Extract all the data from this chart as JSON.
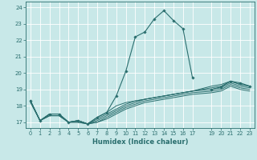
{
  "xlabel": "Humidex (Indice chaleur)",
  "ylabel": "",
  "bg_color": "#c8e8e8",
  "grid_color": "#ffffff",
  "line_color": "#2a6e6e",
  "xlim": [
    -0.5,
    23.5
  ],
  "ylim": [
    16.65,
    24.35
  ],
  "yticks": [
    17,
    18,
    19,
    20,
    21,
    22,
    23,
    24
  ],
  "xticks": [
    0,
    1,
    2,
    3,
    4,
    5,
    6,
    7,
    8,
    9,
    10,
    11,
    12,
    13,
    14,
    15,
    16,
    17,
    19,
    20,
    21,
    22,
    23
  ],
  "lines": [
    {
      "x": [
        0,
        1,
        2,
        3,
        4,
        5,
        6,
        7,
        8,
        9,
        10,
        11,
        12,
        13,
        14,
        15,
        16,
        17
      ],
      "y": [
        18.3,
        17.1,
        17.5,
        17.5,
        17.0,
        17.1,
        16.9,
        17.3,
        17.6,
        18.6,
        20.1,
        22.2,
        22.5,
        23.3,
        23.8,
        23.2,
        22.7,
        19.7
      ],
      "marker": true
    },
    {
      "x": [
        19,
        20,
        21,
        22,
        23
      ],
      "y": [
        19.0,
        19.15,
        19.5,
        19.4,
        19.2
      ],
      "marker": true
    },
    {
      "x": [
        0,
        1,
        2,
        3,
        4,
        5,
        6,
        7,
        8,
        9,
        10,
        11,
        12,
        13,
        14,
        15,
        16,
        17,
        19,
        20,
        21,
        22,
        23
      ],
      "y": [
        18.3,
        17.1,
        17.5,
        17.5,
        17.0,
        17.1,
        16.9,
        17.3,
        17.6,
        18.0,
        18.2,
        18.3,
        18.4,
        18.5,
        18.6,
        18.7,
        18.8,
        18.9,
        19.2,
        19.3,
        19.5,
        19.3,
        19.2
      ],
      "marker": false
    },
    {
      "x": [
        0,
        1,
        2,
        3,
        4,
        5,
        6,
        7,
        8,
        9,
        10,
        11,
        12,
        13,
        14,
        15,
        16,
        17,
        19,
        20,
        21,
        22,
        23
      ],
      "y": [
        18.3,
        17.1,
        17.5,
        17.5,
        17.0,
        17.1,
        16.9,
        17.2,
        17.5,
        17.8,
        18.1,
        18.3,
        18.4,
        18.5,
        18.6,
        18.7,
        18.8,
        18.9,
        19.1,
        19.2,
        19.5,
        19.3,
        19.2
      ],
      "marker": false
    },
    {
      "x": [
        0,
        1,
        2,
        3,
        4,
        5,
        6,
        7,
        8,
        9,
        10,
        11,
        12,
        13,
        14,
        15,
        16,
        17,
        19,
        20,
        21,
        22,
        23
      ],
      "y": [
        18.3,
        17.1,
        17.4,
        17.4,
        17.0,
        17.1,
        16.9,
        17.1,
        17.4,
        17.7,
        18.0,
        18.2,
        18.4,
        18.5,
        18.6,
        18.7,
        18.8,
        18.9,
        19.0,
        19.1,
        19.4,
        19.2,
        19.1
      ],
      "marker": false
    },
    {
      "x": [
        0,
        1,
        2,
        3,
        4,
        5,
        6,
        7,
        8,
        9,
        10,
        11,
        12,
        13,
        14,
        15,
        16,
        17,
        19,
        20,
        21,
        22,
        23
      ],
      "y": [
        18.3,
        17.1,
        17.4,
        17.4,
        17.0,
        17.0,
        16.9,
        17.0,
        17.3,
        17.6,
        17.9,
        18.1,
        18.3,
        18.4,
        18.5,
        18.6,
        18.7,
        18.8,
        18.9,
        19.0,
        19.3,
        19.1,
        19.0
      ],
      "marker": false
    },
    {
      "x": [
        0,
        1,
        2,
        3,
        4,
        5,
        6,
        7,
        8,
        9,
        10,
        11,
        12,
        13,
        14,
        15,
        16,
        17,
        19,
        20,
        21,
        22,
        23
      ],
      "y": [
        18.2,
        17.1,
        17.4,
        17.4,
        17.0,
        17.0,
        16.9,
        17.0,
        17.2,
        17.5,
        17.8,
        18.0,
        18.2,
        18.3,
        18.4,
        18.5,
        18.6,
        18.7,
        18.8,
        18.9,
        19.2,
        19.0,
        18.9
      ],
      "marker": false
    }
  ]
}
